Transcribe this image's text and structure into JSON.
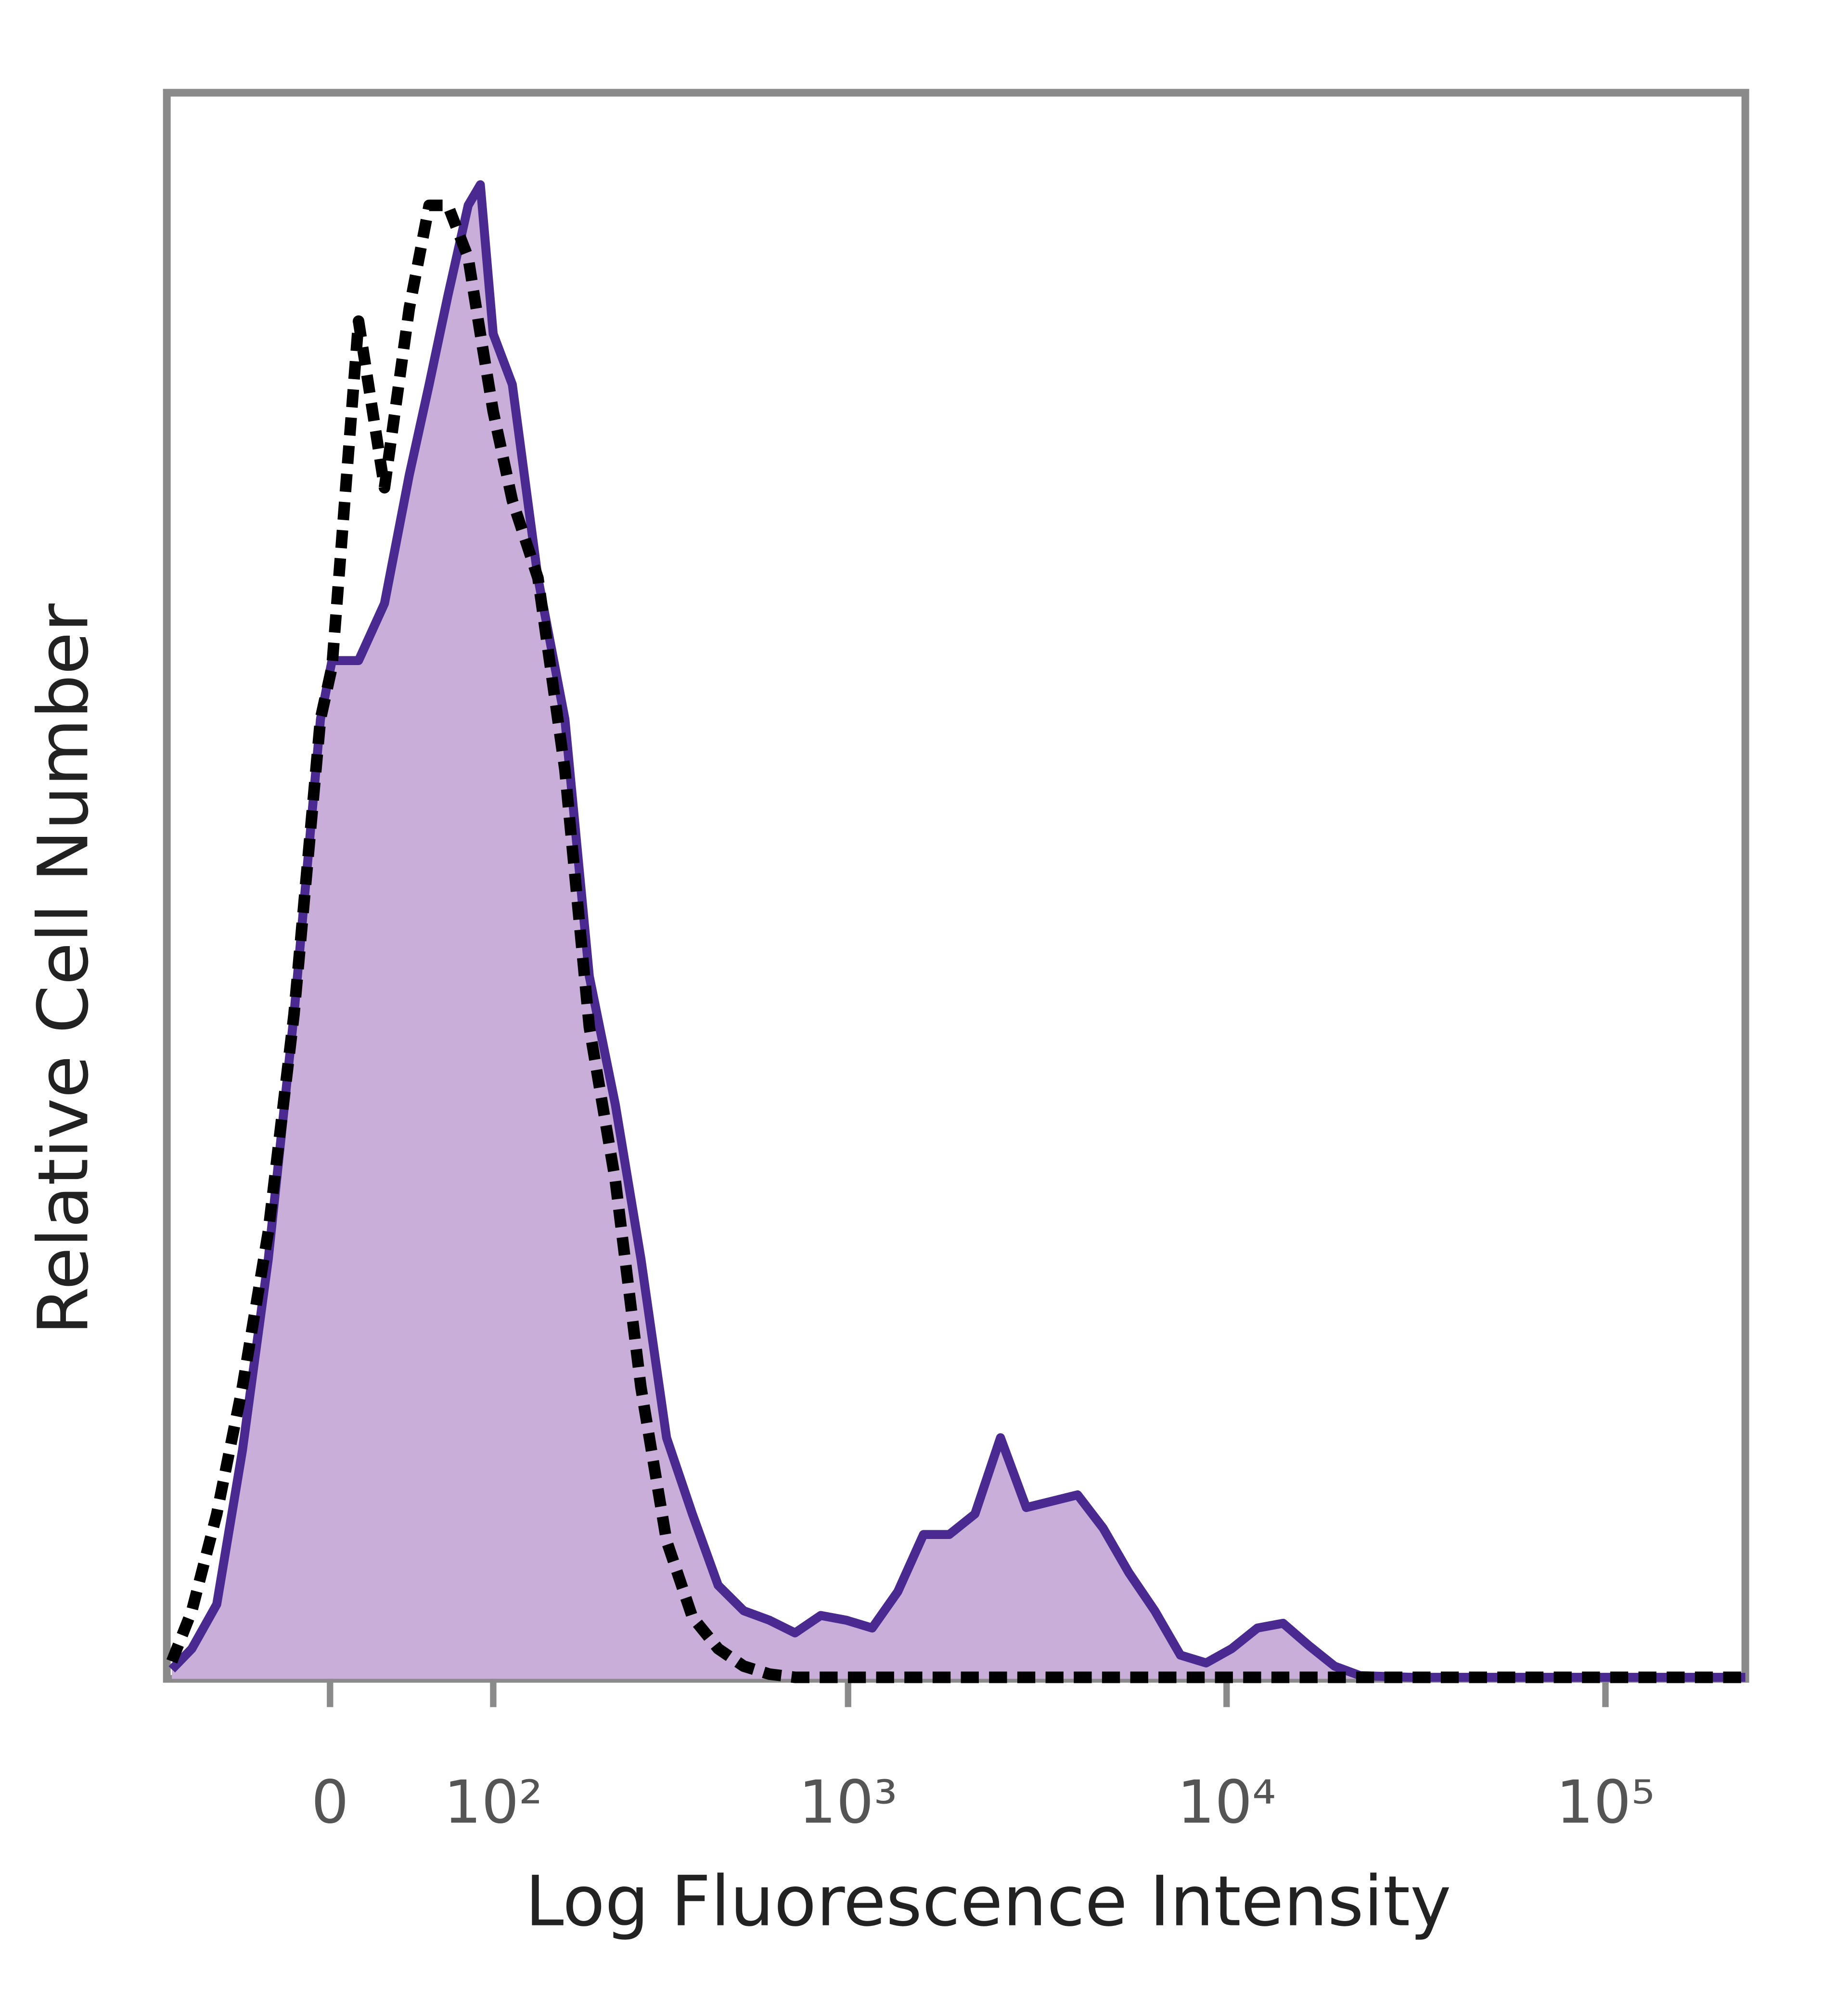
{
  "chart_data": {
    "type": "line",
    "x_label": "Log Fluorescence Intensity",
    "y_label": "Relative Cell Number",
    "x_scale": "biexponential",
    "xlim": [
      -100,
      234000
    ],
    "ylim": [
      0,
      100
    ],
    "xticks": [
      0,
      {
        "value": 100,
        "label": "10²"
      },
      {
        "value": 1000,
        "label": "10³"
      },
      {
        "value": 10000,
        "label": "10⁴"
      },
      {
        "value": 100000,
        "label": "10⁵"
      }
    ],
    "x": [
      -96,
      -81,
      -64,
      -48,
      -33,
      -19,
      -5,
      1,
      15,
      29,
      43,
      55,
      67,
      81,
      90,
      100,
      116,
      140,
      169,
      199,
      236,
      278,
      327,
      384,
      451,
      528,
      618,
      723,
      846,
      990,
      1158,
      1354,
      1584,
      1852,
      2165,
      2530,
      2958,
      3457,
      4042,
      4721,
      5521,
      6459,
      7551,
      8824,
      10311,
      12057,
      14095,
      16478,
      19273,
      22532,
      30788,
      67166,
      233920
    ],
    "series": [
      {
        "color": "#4a2a90",
        "fill": "#c8aed8",
        "dashed": false,
        "values": [
          0.6,
          1.9,
          4.7,
          14.4,
          26.5,
          41.9,
          60.5,
          64.2,
          64.2,
          67.8,
          75.9,
          81.6,
          87.2,
          92.9,
          94.2,
          84.8,
          81.6,
          69.4,
          60.5,
          44.3,
          36.2,
          26.5,
          15.2,
          10.4,
          5.9,
          4.3,
          3.7,
          2.9,
          4.0,
          3.7,
          3.2,
          5.5,
          9.1,
          9.1,
          10.4,
          15.2,
          10.8,
          11.2,
          11.6,
          9.5,
          6.7,
          4.3,
          1.5,
          1.0,
          1.9,
          3.2,
          3.5,
          2.1,
          0.8,
          0.2,
          0.1,
          0.1,
          0.1
        ]
      },
      {
        "color": "#000000",
        "dashed": true,
        "values": [
          1.1,
          4.3,
          10.4,
          18.4,
          28.2,
          41.9,
          60.5,
          63.8,
          85.6,
          75.1,
          86.4,
          92.9,
          92.9,
          89.6,
          84.8,
          79.9,
          74.3,
          69.4,
          57.3,
          41.1,
          31.4,
          18.4,
          8.7,
          3.9,
          1.9,
          0.8,
          0.3,
          0.1,
          0.1,
          0.1,
          0.1,
          0.1,
          0.1,
          0.1,
          0.1,
          0.1,
          0.1,
          0.1,
          0.1,
          0.1,
          0.1,
          0.1,
          0.1,
          0.1,
          0.1,
          0.1,
          0.1,
          0.1,
          0.1,
          0.1,
          0.1,
          0.1,
          0.1
        ]
      }
    ]
  }
}
